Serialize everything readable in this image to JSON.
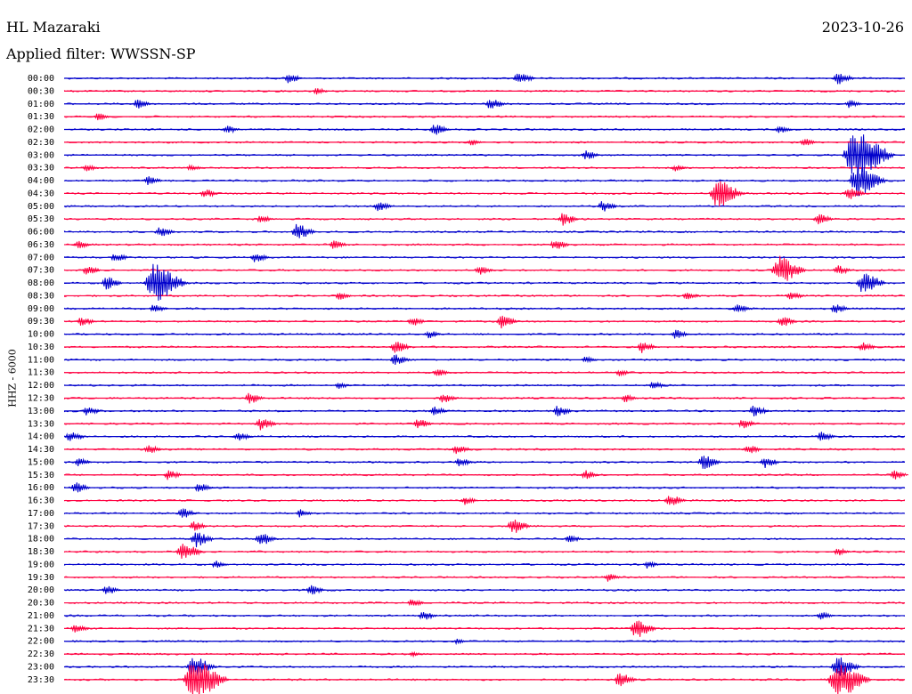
{
  "header": {
    "station": "HL Mazaraki",
    "filter": "Applied filter: WWSSN-SP",
    "date": "2023-10-26"
  },
  "chart_data": {
    "type": "line",
    "title": "HL Mazaraki",
    "subtitle": "Applied filter: WWSSN-SP",
    "date": "2023-10-26",
    "ylabel": "HHZ  -  6000",
    "colors": {
      "even_rows": "#0000cc",
      "odd_rows": "#ff0040"
    },
    "rows": [
      "00:00",
      "00:30",
      "01:00",
      "01:30",
      "02:00",
      "02:30",
      "03:00",
      "03:30",
      "04:00",
      "04:30",
      "05:00",
      "05:30",
      "06:00",
      "06:30",
      "07:00",
      "07:30",
      "08:00",
      "08:30",
      "09:00",
      "09:30",
      "10:00",
      "10:30",
      "11:00",
      "11:30",
      "12:00",
      "12:30",
      "13:00",
      "13:30",
      "14:00",
      "14:30",
      "15:00",
      "15:30",
      "16:00",
      "16:30",
      "17:00",
      "17:30",
      "18:00",
      "18:30",
      "19:00",
      "19:30",
      "20:00",
      "20:30",
      "21:00",
      "21:30",
      "22:00",
      "22:30",
      "23:00",
      "23:30"
    ],
    "x_range_minutes": [
      0,
      30
    ],
    "events": [
      {
        "row": 0,
        "t": 8.0,
        "amp": 6
      },
      {
        "row": 0,
        "t": 16.2,
        "amp": 8
      },
      {
        "row": 0,
        "t": 27.6,
        "amp": 8
      },
      {
        "row": 1,
        "t": 9.0,
        "amp": 4
      },
      {
        "row": 2,
        "t": 2.6,
        "amp": 6
      },
      {
        "row": 2,
        "t": 15.2,
        "amp": 7
      },
      {
        "row": 2,
        "t": 28.0,
        "amp": 5
      },
      {
        "row": 3,
        "t": 1.2,
        "amp": 5
      },
      {
        "row": 4,
        "t": 5.8,
        "amp": 5
      },
      {
        "row": 4,
        "t": 13.2,
        "amp": 7
      },
      {
        "row": 4,
        "t": 25.5,
        "amp": 5
      },
      {
        "row": 5,
        "t": 14.5,
        "amp": 4
      },
      {
        "row": 5,
        "t": 26.4,
        "amp": 5
      },
      {
        "row": 6,
        "t": 18.6,
        "amp": 6
      },
      {
        "row": 6,
        "t": 28.2,
        "amp": 30
      },
      {
        "row": 6,
        "t": 28.8,
        "amp": 9
      },
      {
        "row": 7,
        "t": 0.8,
        "amp": 4
      },
      {
        "row": 7,
        "t": 4.5,
        "amp": 4
      },
      {
        "row": 7,
        "t": 21.8,
        "amp": 4
      },
      {
        "row": 8,
        "t": 3.0,
        "amp": 6
      },
      {
        "row": 8,
        "t": 28.3,
        "amp": 20
      },
      {
        "row": 9,
        "t": 5.0,
        "amp": 6
      },
      {
        "row": 9,
        "t": 23.3,
        "amp": 18
      },
      {
        "row": 9,
        "t": 28.0,
        "amp": 8
      },
      {
        "row": 10,
        "t": 11.2,
        "amp": 6
      },
      {
        "row": 10,
        "t": 19.2,
        "amp": 7
      },
      {
        "row": 11,
        "t": 7.0,
        "amp": 5
      },
      {
        "row": 11,
        "t": 17.8,
        "amp": 8
      },
      {
        "row": 11,
        "t": 26.9,
        "amp": 7
      },
      {
        "row": 12,
        "t": 3.4,
        "amp": 7
      },
      {
        "row": 12,
        "t": 8.3,
        "amp": 10
      },
      {
        "row": 13,
        "t": 0.5,
        "amp": 5
      },
      {
        "row": 13,
        "t": 9.6,
        "amp": 6
      },
      {
        "row": 13,
        "t": 17.5,
        "amp": 7
      },
      {
        "row": 14,
        "t": 1.8,
        "amp": 6
      },
      {
        "row": 14,
        "t": 6.8,
        "amp": 6
      },
      {
        "row": 15,
        "t": 0.8,
        "amp": 6
      },
      {
        "row": 15,
        "t": 14.8,
        "amp": 6
      },
      {
        "row": 15,
        "t": 25.5,
        "amp": 18
      },
      {
        "row": 15,
        "t": 27.6,
        "amp": 6
      },
      {
        "row": 16,
        "t": 1.5,
        "amp": 8
      },
      {
        "row": 16,
        "t": 3.2,
        "amp": 24
      },
      {
        "row": 16,
        "t": 28.5,
        "amp": 14
      },
      {
        "row": 17,
        "t": 9.8,
        "amp": 5
      },
      {
        "row": 17,
        "t": 22.2,
        "amp": 5
      },
      {
        "row": 17,
        "t": 25.9,
        "amp": 6
      },
      {
        "row": 18,
        "t": 3.2,
        "amp": 6
      },
      {
        "row": 18,
        "t": 24.0,
        "amp": 6
      },
      {
        "row": 18,
        "t": 27.5,
        "amp": 6
      },
      {
        "row": 19,
        "t": 0.6,
        "amp": 6
      },
      {
        "row": 19,
        "t": 12.4,
        "amp": 6
      },
      {
        "row": 19,
        "t": 15.6,
        "amp": 8
      },
      {
        "row": 19,
        "t": 25.6,
        "amp": 7
      },
      {
        "row": 20,
        "t": 13.0,
        "amp": 5
      },
      {
        "row": 20,
        "t": 21.8,
        "amp": 6
      },
      {
        "row": 21,
        "t": 11.8,
        "amp": 8
      },
      {
        "row": 21,
        "t": 20.6,
        "amp": 7
      },
      {
        "row": 21,
        "t": 28.5,
        "amp": 6
      },
      {
        "row": 22,
        "t": 11.8,
        "amp": 7
      },
      {
        "row": 22,
        "t": 18.6,
        "amp": 4
      },
      {
        "row": 23,
        "t": 13.3,
        "amp": 5
      },
      {
        "row": 23,
        "t": 19.8,
        "amp": 4
      },
      {
        "row": 24,
        "t": 9.8,
        "amp": 4
      },
      {
        "row": 24,
        "t": 21.0,
        "amp": 5
      },
      {
        "row": 25,
        "t": 6.6,
        "amp": 7
      },
      {
        "row": 25,
        "t": 13.5,
        "amp": 6
      },
      {
        "row": 25,
        "t": 20.0,
        "amp": 5
      },
      {
        "row": 26,
        "t": 0.8,
        "amp": 6
      },
      {
        "row": 26,
        "t": 13.2,
        "amp": 6
      },
      {
        "row": 26,
        "t": 17.6,
        "amp": 7
      },
      {
        "row": 26,
        "t": 24.6,
        "amp": 7
      },
      {
        "row": 27,
        "t": 7.0,
        "amp": 8
      },
      {
        "row": 27,
        "t": 12.6,
        "amp": 7
      },
      {
        "row": 27,
        "t": 24.2,
        "amp": 6
      },
      {
        "row": 28,
        "t": 0.2,
        "amp": 7
      },
      {
        "row": 28,
        "t": 6.2,
        "amp": 6
      },
      {
        "row": 28,
        "t": 27.0,
        "amp": 6
      },
      {
        "row": 29,
        "t": 3.0,
        "amp": 6
      },
      {
        "row": 29,
        "t": 14.0,
        "amp": 6
      },
      {
        "row": 29,
        "t": 24.4,
        "amp": 6
      },
      {
        "row": 30,
        "t": 0.5,
        "amp": 5
      },
      {
        "row": 30,
        "t": 14.1,
        "amp": 6
      },
      {
        "row": 30,
        "t": 22.8,
        "amp": 9
      },
      {
        "row": 30,
        "t": 25.0,
        "amp": 7
      },
      {
        "row": 31,
        "t": 3.7,
        "amp": 6
      },
      {
        "row": 31,
        "t": 18.6,
        "amp": 6
      },
      {
        "row": 31,
        "t": 29.6,
        "amp": 6
      },
      {
        "row": 32,
        "t": 0.4,
        "amp": 7
      },
      {
        "row": 32,
        "t": 4.8,
        "amp": 6
      },
      {
        "row": 33,
        "t": 14.3,
        "amp": 5
      },
      {
        "row": 33,
        "t": 21.6,
        "amp": 8
      },
      {
        "row": 34,
        "t": 4.2,
        "amp": 7
      },
      {
        "row": 34,
        "t": 8.4,
        "amp": 5
      },
      {
        "row": 35,
        "t": 4.6,
        "amp": 6
      },
      {
        "row": 35,
        "t": 16.0,
        "amp": 10
      },
      {
        "row": 36,
        "t": 4.7,
        "amp": 10
      },
      {
        "row": 36,
        "t": 7.0,
        "amp": 9
      },
      {
        "row": 36,
        "t": 18.0,
        "amp": 5
      },
      {
        "row": 37,
        "t": 4.2,
        "amp": 12
      },
      {
        "row": 37,
        "t": 27.6,
        "amp": 5
      },
      {
        "row": 38,
        "t": 5.4,
        "amp": 5
      },
      {
        "row": 38,
        "t": 20.8,
        "amp": 5
      },
      {
        "row": 39,
        "t": 19.4,
        "amp": 5
      },
      {
        "row": 40,
        "t": 1.5,
        "amp": 6
      },
      {
        "row": 40,
        "t": 8.8,
        "amp": 6
      },
      {
        "row": 41,
        "t": 12.4,
        "amp": 5
      },
      {
        "row": 42,
        "t": 12.8,
        "amp": 6
      },
      {
        "row": 42,
        "t": 27.0,
        "amp": 5
      },
      {
        "row": 43,
        "t": 0.4,
        "amp": 6
      },
      {
        "row": 43,
        "t": 20.4,
        "amp": 12
      },
      {
        "row": 44,
        "t": 14.0,
        "amp": 3
      },
      {
        "row": 45,
        "t": 12.4,
        "amp": 3
      },
      {
        "row": 46,
        "t": 4.6,
        "amp": 14
      },
      {
        "row": 46,
        "t": 27.6,
        "amp": 14
      },
      {
        "row": 47,
        "t": 4.6,
        "amp": 26
      },
      {
        "row": 47,
        "t": 19.8,
        "amp": 9
      },
      {
        "row": 47,
        "t": 27.6,
        "amp": 24
      }
    ]
  }
}
